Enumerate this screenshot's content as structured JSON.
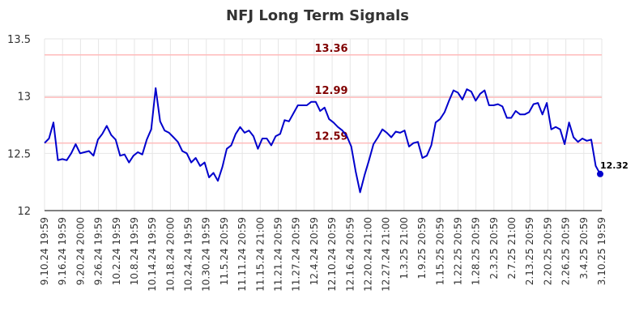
{
  "chart_data": {
    "type": "line",
    "title": "NFJ Long Term Signals",
    "xlabel": "",
    "ylabel": "",
    "ylim": [
      12,
      13.5
    ],
    "yticks": [
      "12",
      "12.5",
      "13",
      "13.5"
    ],
    "grid": true,
    "xtick_labels": [
      "9.10.24 19:59",
      "9.16.24 19:59",
      "9.20.24 20:00",
      "9.26.24 19:59",
      "10.2.24 19:59",
      "10.8.24 19:59",
      "10.14.24 19:59",
      "10.18.24 20:00",
      "10.24.24 19:59",
      "10.30.24 19:59",
      "11.5.24 20:59",
      "11.11.24 20:59",
      "11.15.24 21:00",
      "11.21.24 20:59",
      "11.27.24 20:59",
      "12.4.24 20:59",
      "12.10.24 20:59",
      "12.16.24 20:59",
      "12.20.24 21:00",
      "12.27.24 21:00",
      "1.3.25 21:00",
      "1.9.25 20:59",
      "1.15.25 20:59",
      "1.22.25 20:59",
      "1.28.25 20:59",
      "2.3.25 20:59",
      "2.7.25 21:00",
      "2.13.25 20:59",
      "2.20.25 20:59",
      "2.26.25 20:59",
      "3.4.25 20:59",
      "3.10.25 19:59"
    ],
    "reference_lines": [
      {
        "value": 13.36,
        "label": "13.36"
      },
      {
        "value": 12.99,
        "label": "12.99"
      },
      {
        "value": 12.59,
        "label": "12.59"
      }
    ],
    "last_value_label": "12.32",
    "series": [
      {
        "values": [
          12.59,
          12.63,
          12.77,
          12.44,
          12.45,
          12.44,
          12.5,
          12.58,
          12.5,
          12.51,
          12.52,
          12.48,
          12.62,
          12.67,
          12.74,
          12.66,
          12.62,
          12.48,
          12.49,
          12.42,
          12.48,
          12.51,
          12.49,
          12.62,
          12.71,
          13.07,
          12.78,
          12.7,
          12.68,
          12.64,
          12.6,
          12.52,
          12.5,
          12.42,
          12.46,
          12.39,
          12.42,
          12.29,
          12.33,
          12.26,
          12.38,
          12.54,
          12.57,
          12.67,
          12.73,
          12.68,
          12.7,
          12.65,
          12.54,
          12.63,
          12.63,
          12.57,
          12.65,
          12.67,
          12.79,
          12.78,
          12.85,
          12.92,
          12.92,
          12.92,
          12.95,
          12.95,
          12.87,
          12.9,
          12.8,
          12.77,
          12.73,
          12.7,
          12.65,
          12.56,
          12.34,
          12.16,
          12.31,
          12.44,
          12.58,
          12.64,
          12.71,
          12.68,
          12.64,
          12.69,
          12.68,
          12.7,
          12.56,
          12.59,
          12.6,
          12.46,
          12.48,
          12.57,
          12.77,
          12.8,
          12.86,
          12.96,
          13.05,
          13.03,
          12.97,
          13.06,
          13.04,
          12.96,
          13.02,
          13.05,
          12.92,
          12.92,
          12.93,
          12.91,
          12.81,
          12.81,
          12.87,
          12.84,
          12.84,
          12.86,
          12.93,
          12.94,
          12.84,
          12.94,
          12.71,
          12.73,
          12.71,
          12.58,
          12.77,
          12.64,
          12.6,
          12.63,
          12.61,
          12.62,
          12.39,
          12.32
        ],
        "color": "#0000cc"
      }
    ]
  }
}
